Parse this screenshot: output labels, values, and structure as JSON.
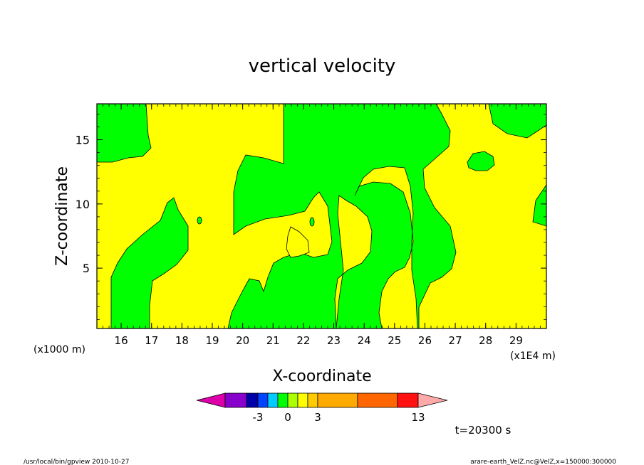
{
  "chart_data": {
    "type": "heatmap",
    "title": "vertical velocity",
    "xlabel": "X-coordinate",
    "ylabel": "Z-coordinate",
    "x_unit_note": "(x1E4 m)",
    "z_unit_note": "(x1000 m)",
    "xlim": [
      15.2,
      30.0
    ],
    "ylim": [
      0.3,
      17.8
    ],
    "x_ticks": [
      "16",
      "17",
      "18",
      "19",
      "20",
      "21",
      "22",
      "23",
      "24",
      "25",
      "26",
      "27",
      "28",
      "29"
    ],
    "y_ticks": [
      "5",
      "10",
      "15"
    ],
    "colors": {
      "negative": "#00ff00",
      "positive": "#ffff00"
    },
    "colorbar": {
      "labels": [
        "-3",
        "0",
        "3",
        "13"
      ],
      "colors": [
        "#dd00aa",
        "#8800cc",
        "#0000aa",
        "#0044ff",
        "#00ccff",
        "#00ff00",
        "#aaff00",
        "#ffff00",
        "#ffcc00",
        "#ffaa00",
        "#ff6600",
        "#ff1111",
        "#ff7777",
        "#ffaaaa"
      ]
    },
    "time_label": "t=20300 s"
  },
  "footer": {
    "left": "/usr/local/bin/gpview  2010-10-27",
    "right": "arare-earth_VelZ.nc@VelZ,x=150000:300000"
  }
}
